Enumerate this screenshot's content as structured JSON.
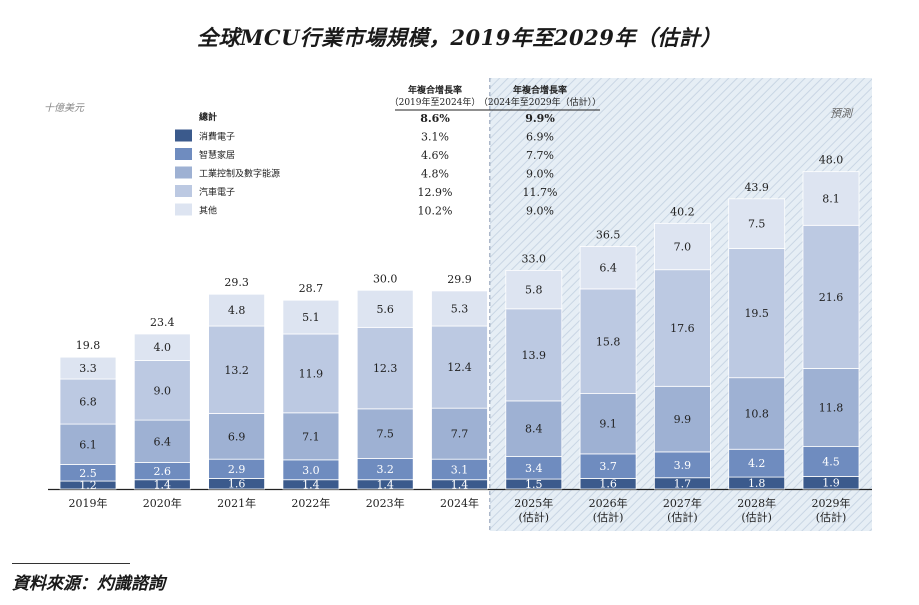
{
  "title": "全球MCU行業市場規模，2019年至2029年（估計）",
  "source": "資料來源：灼識諮詢",
  "colors": {
    "consumer": "#3b5a8c",
    "smart_home": "#6f8cbf",
    "industrial": "#9eb1d3",
    "auto": "#bcc9e2",
    "other": "#dde4f1",
    "forecast_bg": "#e6eef5",
    "forecast_hatch": "#c9d6e4"
  },
  "chart_data": {
    "type": "bar",
    "stacked": true,
    "unit_label": "十億美元",
    "forecast_label": "預測",
    "categories": [
      "2019年",
      "2020年",
      "2021年",
      "2022年",
      "2023年",
      "2024年",
      "2025年",
      "2026年",
      "2027年",
      "2028年",
      "2029年"
    ],
    "forecast_suffix": "(估計)",
    "forecast_from_index": 6,
    "series": [
      {
        "key": "consumer",
        "name": "消費電子",
        "values": [
          1.2,
          1.4,
          1.6,
          1.4,
          1.4,
          1.4,
          1.5,
          1.6,
          1.7,
          1.8,
          1.9
        ]
      },
      {
        "key": "smart_home",
        "name": "智慧家居",
        "values": [
          2.5,
          2.6,
          2.9,
          3.0,
          3.2,
          3.1,
          3.4,
          3.7,
          3.9,
          4.2,
          4.5
        ]
      },
      {
        "key": "industrial",
        "name": "工業控制及數字能源",
        "values": [
          6.1,
          6.4,
          6.9,
          7.1,
          7.5,
          7.7,
          8.4,
          9.1,
          9.9,
          10.8,
          11.8
        ]
      },
      {
        "key": "auto",
        "name": "汽車電子",
        "values": [
          6.8,
          9.0,
          13.2,
          11.9,
          12.3,
          12.4,
          13.9,
          15.8,
          17.6,
          19.5,
          21.6
        ]
      },
      {
        "key": "other",
        "name": "其他",
        "values": [
          3.3,
          4.0,
          4.8,
          5.1,
          5.6,
          5.3,
          5.8,
          6.4,
          7.0,
          7.5,
          8.1
        ]
      }
    ],
    "totals": [
      "19.8",
      "23.4",
      "29.3",
      "28.7",
      "30.0",
      "29.9",
      "33.0",
      "36.5",
      "40.2",
      "43.9",
      "48.0"
    ],
    "cagr_table": {
      "total_label": "總計",
      "header1_line1": "年複合增長率",
      "header1_line2": "（2019年至2024年）",
      "header2_line1": "年複合增長率",
      "header2_line2": "（2024年至2029年（估計））",
      "rows": [
        {
          "label": "總計",
          "c1": "8.6%",
          "c2": "9.9%"
        },
        {
          "label": "消費電子",
          "c1": "3.1%",
          "c2": "6.9%"
        },
        {
          "label": "智慧家居",
          "c1": "4.6%",
          "c2": "7.7%"
        },
        {
          "label": "工業控制及數字能源",
          "c1": "4.8%",
          "c2": "9.0%"
        },
        {
          "label": "汽車電子",
          "c1": "12.9%",
          "c2": "11.7%"
        },
        {
          "label": "其他",
          "c1": "10.2%",
          "c2": "9.0%"
        }
      ]
    },
    "ylim": [
      0,
      50
    ]
  }
}
